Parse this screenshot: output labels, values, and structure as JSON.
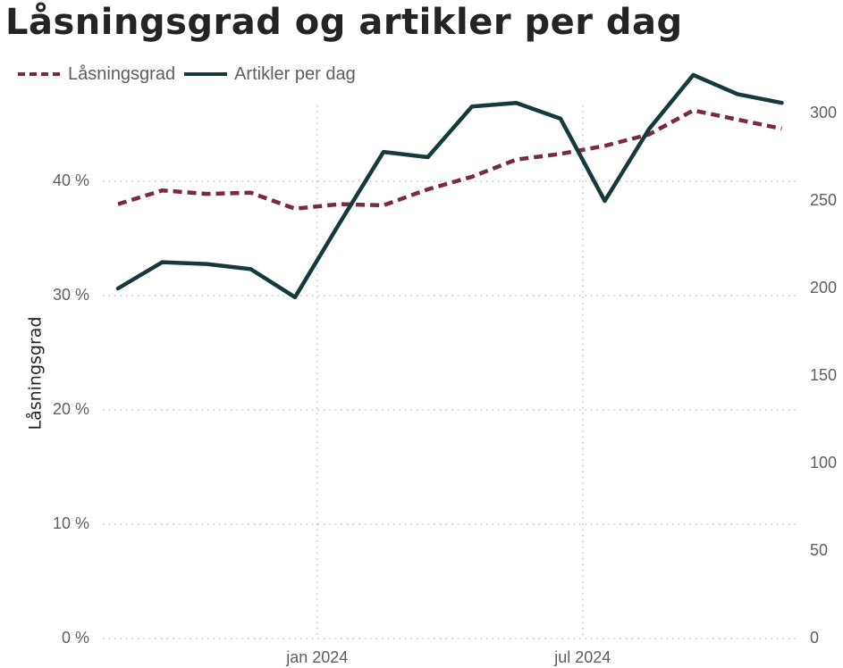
{
  "chart_data": {
    "type": "line",
    "title": "Låsningsgrad og artikler per dag",
    "ylabel": "Låsningsgrad",
    "y2label": "",
    "xlabel": "",
    "legend_position": "top-left",
    "x_ticks": [
      {
        "label": "jan 2024",
        "month_index": 5
      },
      {
        "label": "jul 2024",
        "month_index": 11
      }
    ],
    "y_ticks": [
      "0 %",
      "10 %",
      "20 %",
      "30 %",
      "40 %"
    ],
    "y_tick_values": [
      0,
      10,
      20,
      30,
      40
    ],
    "y2_ticks": [
      "0",
      "50",
      "100",
      "150",
      "200",
      "250",
      "300"
    ],
    "y2_tick_values": [
      0,
      50,
      100,
      150,
      200,
      250,
      300
    ],
    "ylim": [
      0,
      50
    ],
    "y2lim": [
      0,
      325
    ],
    "x_count": 16,
    "series": [
      {
        "name": "Låsningsgrad",
        "axis": "left",
        "unit": "%",
        "style": "dashed",
        "color": "#7b2746",
        "values": [
          38.0,
          39.2,
          38.9,
          39.0,
          37.6,
          38.0,
          37.9,
          39.3,
          40.4,
          41.9,
          42.4,
          43.1,
          44.1,
          46.2,
          45.4,
          44.6
        ]
      },
      {
        "name": "Artikler per dag",
        "axis": "right",
        "unit": "",
        "style": "solid",
        "color": "#16393b",
        "values": [
          200,
          215,
          214,
          211,
          195,
          237,
          278,
          275,
          304,
          306,
          297,
          250,
          291,
          322,
          311,
          306
        ]
      }
    ]
  }
}
